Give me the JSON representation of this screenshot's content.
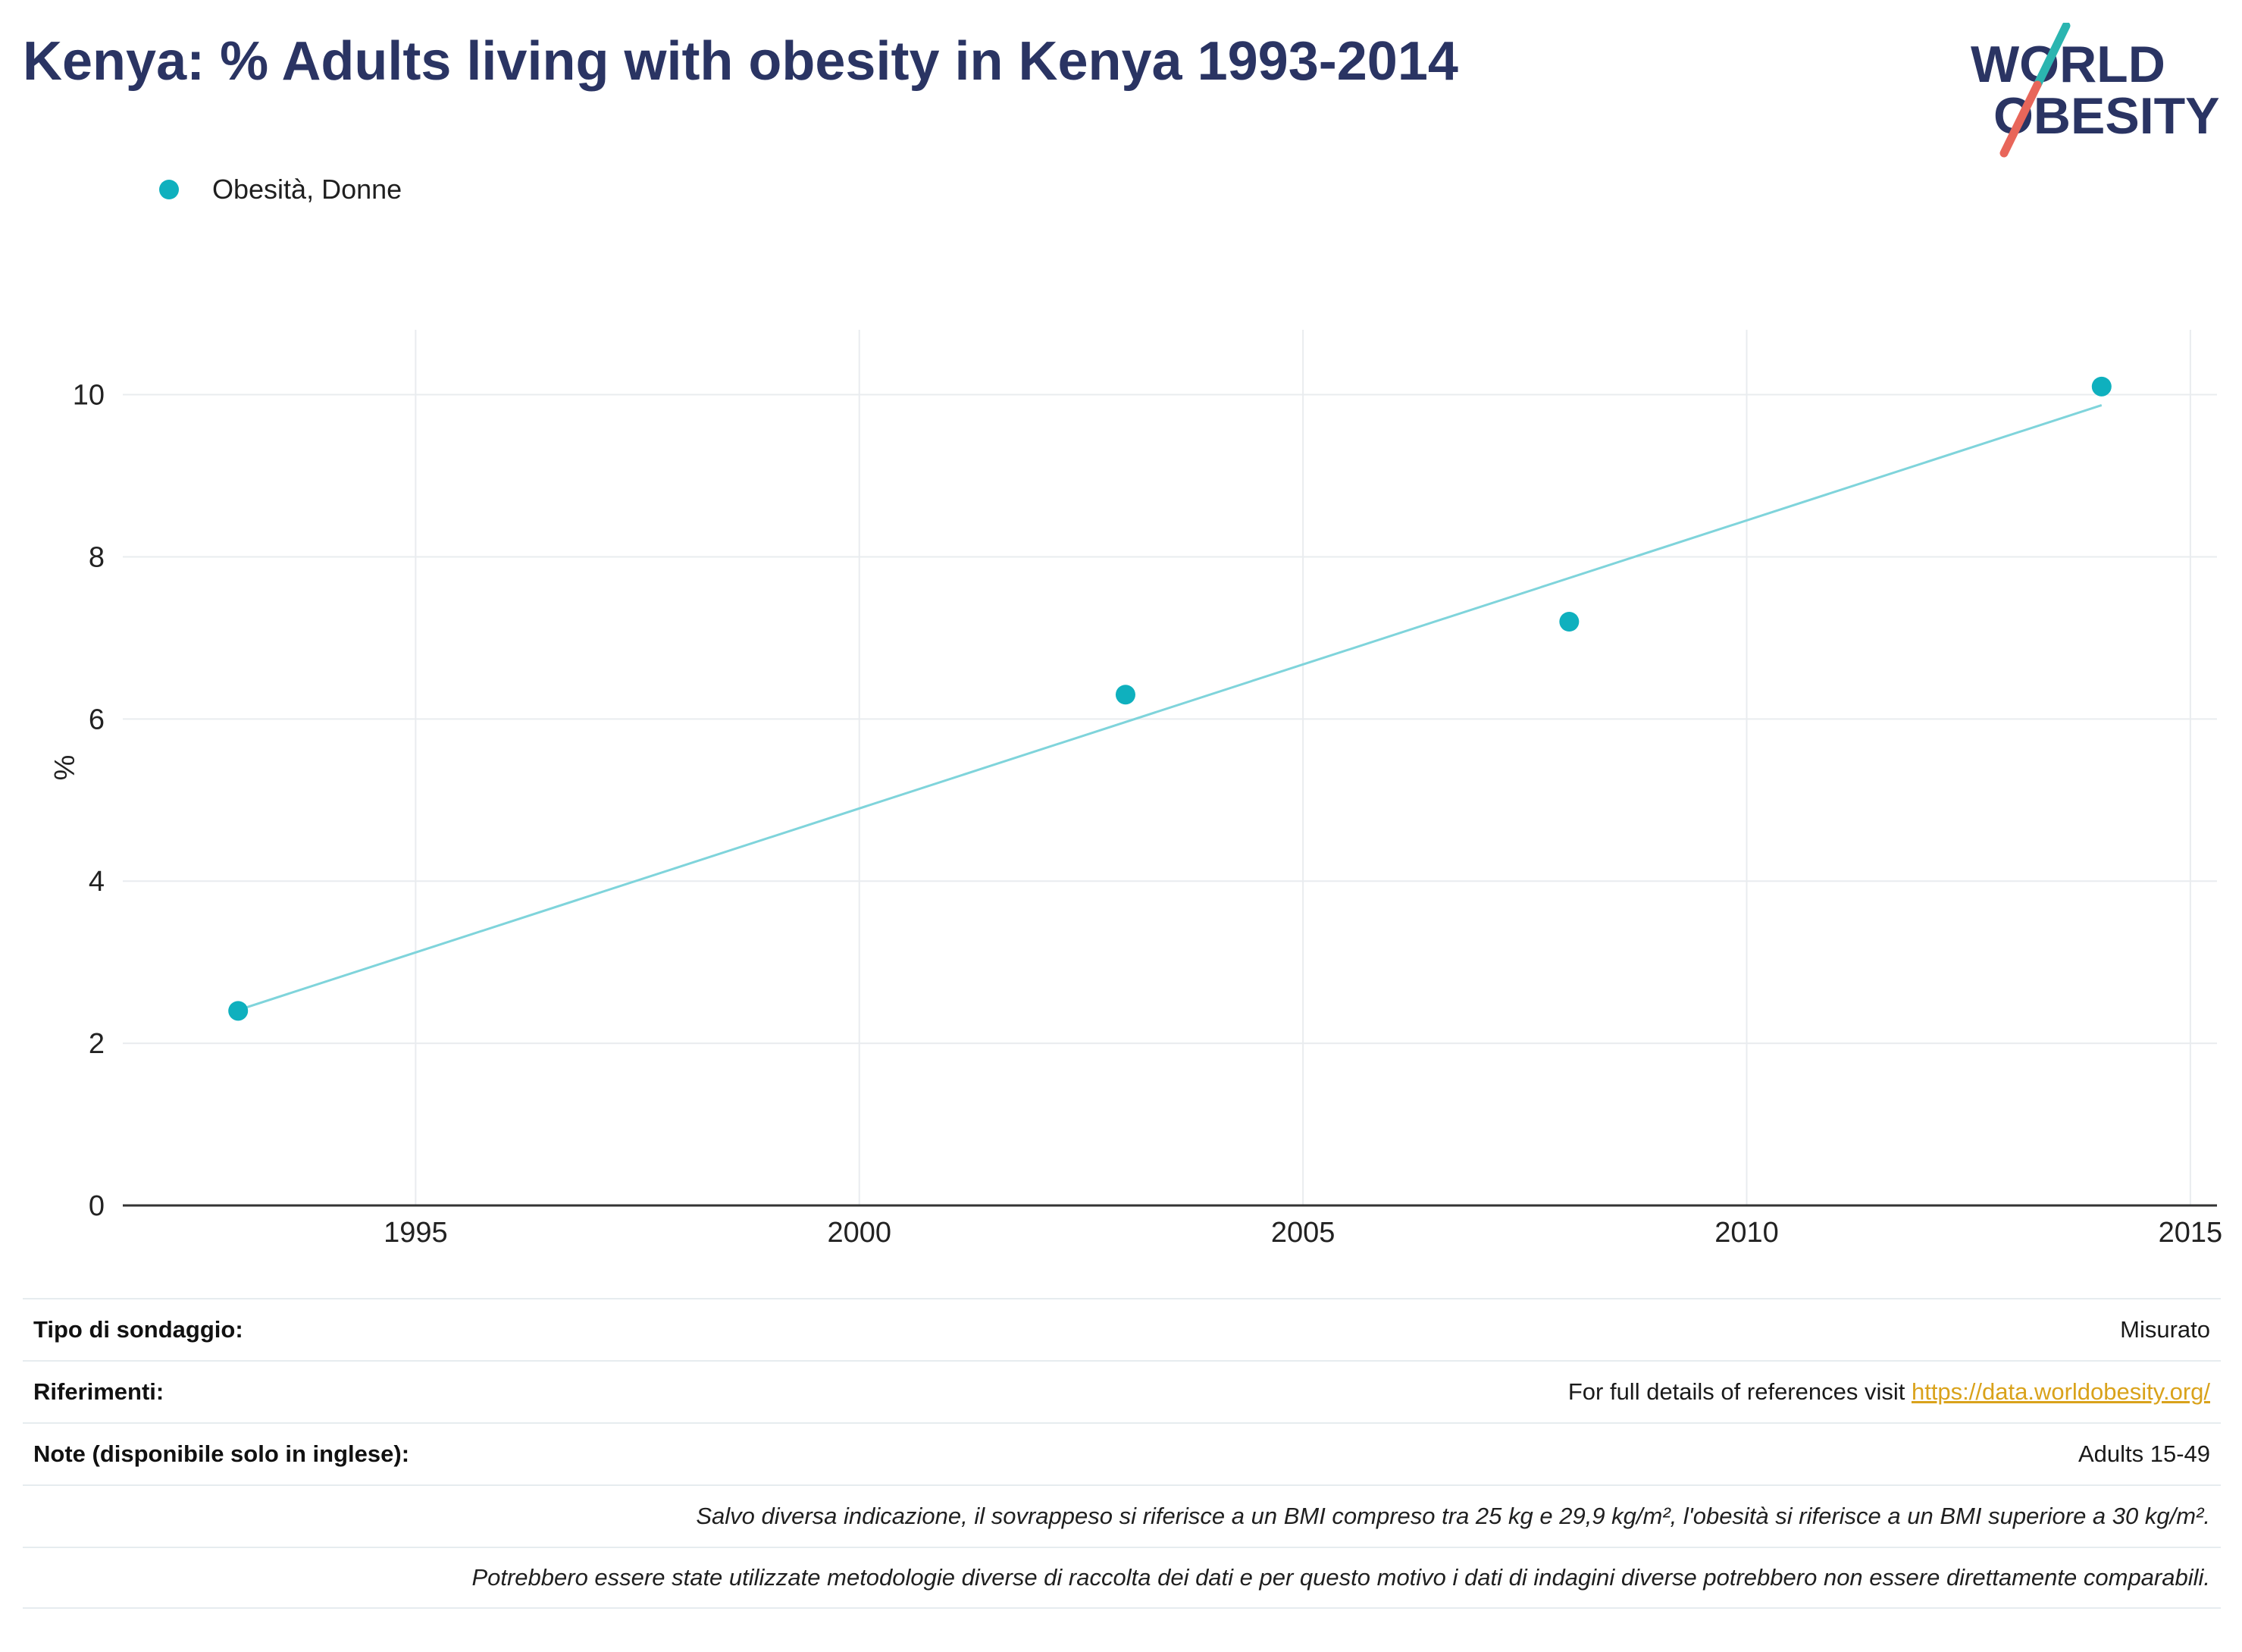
{
  "title": "Kenya: % Adults living with obesity in Kenya 1993-2014",
  "logo": {
    "line1": "WORLD",
    "line2": "OBESITY"
  },
  "colors": {
    "title": "#2a3463",
    "series": "#0fb0be",
    "trendline": "#7fd4db",
    "grid": "#e9ecef",
    "axis": "#333333",
    "link": "#d9a21b",
    "logo_teal": "#2bb5b0",
    "logo_red": "#e8665a"
  },
  "chart_data": {
    "type": "scatter",
    "title": "Kenya: % Adults living with obesity in Kenya 1993-2014",
    "xlabel": "",
    "ylabel": "%",
    "xlim": [
      1991.7,
      2015.3
    ],
    "ylim": [
      0,
      10.8
    ],
    "xticks": [
      1995,
      2000,
      2005,
      2010,
      2015
    ],
    "yticks": [
      0,
      2,
      4,
      6,
      8,
      10
    ],
    "grid": true,
    "legend_position": "top-left",
    "series": [
      {
        "name": "Obesità, Donne",
        "x": [
          1993,
          2003,
          2008,
          2014
        ],
        "y": [
          2.4,
          6.3,
          7.2,
          10.1
        ]
      }
    ],
    "trendline": {
      "x": [
        1993,
        2014
      ],
      "y": [
        2.41,
        9.87
      ]
    }
  },
  "info": {
    "survey_type_label": "Tipo di sondaggio:",
    "survey_type_value": "Misurato",
    "references_label": "Riferimenti:",
    "references_text": "For full details of references visit ",
    "references_link": "https://data.worldobesity.org/",
    "notes_label": "Note (disponibile solo in inglese):",
    "notes_value": "Adults 15-49",
    "footnote_1": "Salvo diversa indicazione, il sovrappeso si riferisce a un BMI compreso tra 25 kg e 29,9 kg/m², l'obesità si riferisce a un BMI superiore a 30 kg/m².",
    "footnote_2": "Potrebbero essere state utilizzate metodologie diverse di raccolta dei dati e per questo motivo i dati di indagini diverse potrebbero non essere direttamente comparabili."
  }
}
